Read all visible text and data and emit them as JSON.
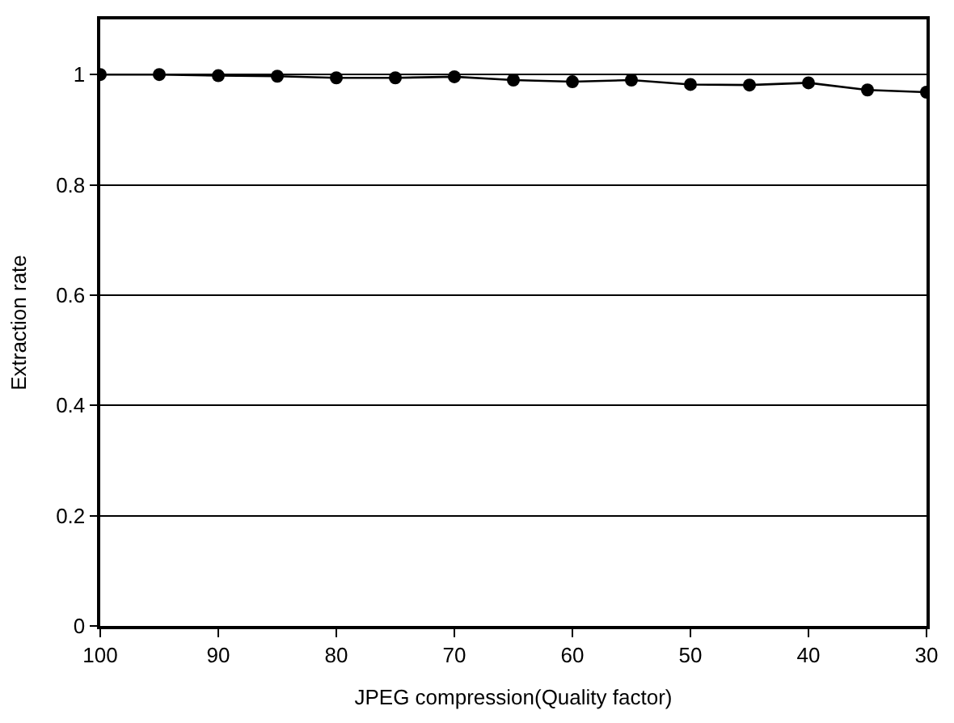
{
  "chart_data": {
    "type": "line",
    "xlabel": "JPEG compression(Quality factor)",
    "ylabel": "Extraction rate",
    "x": [
      100,
      95,
      90,
      85,
      80,
      75,
      70,
      65,
      60,
      55,
      50,
      45,
      40,
      35,
      30
    ],
    "series": [
      {
        "color": "#000000",
        "values": [
          1.0,
          1.0,
          0.998,
          0.997,
          0.994,
          0.994,
          0.996,
          0.99,
          0.987,
          0.99,
          0.982,
          0.981,
          0.985,
          0.972,
          0.968
        ]
      }
    ],
    "xlim": [
      100,
      30
    ],
    "xticks": [
      100,
      90,
      80,
      70,
      60,
      50,
      40,
      30
    ],
    "ylim": [
      0,
      1.1
    ],
    "yticks": [
      0,
      0.2,
      0.4,
      0.6,
      0.8,
      1
    ],
    "grid": "y",
    "marker": "circle",
    "line_style": "solid"
  }
}
